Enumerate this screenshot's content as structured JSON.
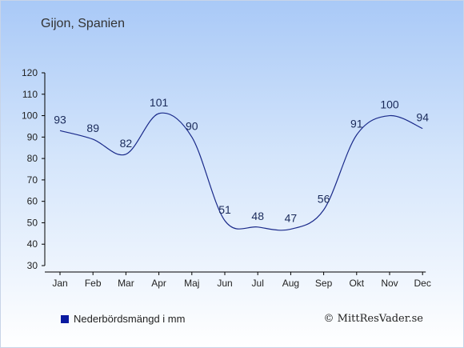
{
  "header": {
    "location": "Gijon, Spanien"
  },
  "legend": {
    "label": "Nederbördsmängd i mm"
  },
  "footer": {
    "copyright": "© MittResVader.se"
  },
  "colors": {
    "line": "#1a2a8a",
    "swatch": "#0a1aa0",
    "axis": "#000000",
    "text": "#222222"
  },
  "chart_data": {
    "type": "line",
    "categories": [
      "Jan",
      "Feb",
      "Mar",
      "Apr",
      "Maj",
      "Jun",
      "Jul",
      "Aug",
      "Sep",
      "Okt",
      "Nov",
      "Dec"
    ],
    "series": [
      {
        "name": "Nederbördsmängd i mm",
        "values": [
          93,
          89,
          82,
          101,
          90,
          51,
          48,
          47,
          56,
          91,
          100,
          94
        ]
      }
    ],
    "ylim": [
      30,
      120
    ],
    "yticks": [
      30,
      40,
      50,
      60,
      70,
      80,
      90,
      100,
      110,
      120
    ],
    "grid": false,
    "legend_position": "bottom-left"
  }
}
